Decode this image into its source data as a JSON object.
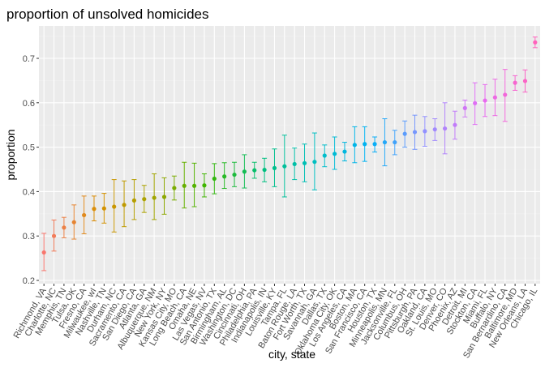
{
  "chart_data": {
    "type": "scatter",
    "title": "proportion of unsolved homicides",
    "xlabel": "city, state",
    "ylabel": "proportion",
    "ylim": [
      0.2,
      0.75
    ],
    "yticks": [
      0.2,
      0.3,
      0.4,
      0.5,
      0.6,
      0.7
    ],
    "grid": true,
    "legend": "none",
    "categories": [
      "Richmond, VA",
      "Charlotte, NC",
      "Memphis, TN",
      "Tulsa, OK",
      "Fresno, CA",
      "Milwaukee, wI",
      "Nashville, TN",
      "Durham, NC",
      "Sacramento, CA",
      "San Diego, CA",
      "Atlanta, GA",
      "Albuquerque, NM",
      "New York, NY",
      "Kansas City, MO",
      "Long Beach, CA",
      "Omaha, NE",
      "Las Vegas, NV",
      "San Antonio, TX",
      "Birmingham, AL",
      "Washington, DC",
      "Cincinnati, OH",
      "Philadelphia, PA",
      "Indianapolis, IN",
      "Louisville, KY",
      "Tampa, FL",
      "Baton Rouge, LA",
      "Fort Worth, TX",
      "Savannah, GA",
      "Dallas, TX",
      "Oklahoma City, OK",
      "Los Angeles, CA",
      "Boston, MA",
      "San Francisco, CA",
      "Houston, TX",
      "Minneapolis, MN",
      "Jacksonville, FL",
      "Columbus, OH",
      "Pittsburgh, PA",
      "Oakland, CA",
      "St. Louis, MO",
      "Denver, CO",
      "Phoenix, AZ",
      "Detroit, MI",
      "Stockton, CA",
      "Miami, FL",
      "Buffalo, NY",
      "San Bernardino, CA",
      "Baltimore, MD",
      "New Orleans, LA",
      "Chicago, IL"
    ],
    "series": [
      {
        "estimate": [
          0.263,
          0.3,
          0.319,
          0.331,
          0.347,
          0.361,
          0.362,
          0.366,
          0.37,
          0.38,
          0.383,
          0.386,
          0.388,
          0.408,
          0.413,
          0.413,
          0.414,
          0.429,
          0.434,
          0.438,
          0.445,
          0.448,
          0.449,
          0.453,
          0.457,
          0.462,
          0.464,
          0.467,
          0.481,
          0.485,
          0.49,
          0.505,
          0.507,
          0.507,
          0.511,
          0.511,
          0.53,
          0.534,
          0.536,
          0.54,
          0.542,
          0.55,
          0.588,
          0.599,
          0.605,
          0.612,
          0.618,
          0.645,
          0.649,
          0.736
        ],
        "low": [
          0.222,
          0.266,
          0.296,
          0.293,
          0.305,
          0.334,
          0.329,
          0.309,
          0.321,
          0.337,
          0.353,
          0.337,
          0.349,
          0.381,
          0.363,
          0.366,
          0.388,
          0.395,
          0.407,
          0.411,
          0.408,
          0.43,
          0.422,
          0.411,
          0.388,
          0.427,
          0.422,
          0.404,
          0.456,
          0.45,
          0.469,
          0.465,
          0.468,
          0.489,
          0.458,
          0.483,
          0.5,
          0.495,
          0.502,
          0.515,
          0.485,
          0.518,
          0.568,
          0.551,
          0.569,
          0.571,
          0.558,
          0.628,
          0.624,
          0.724
        ],
        "high": [
          0.306,
          0.336,
          0.342,
          0.37,
          0.39,
          0.39,
          0.396,
          0.427,
          0.424,
          0.427,
          0.414,
          0.44,
          0.431,
          0.435,
          0.466,
          0.464,
          0.44,
          0.463,
          0.465,
          0.466,
          0.483,
          0.466,
          0.475,
          0.496,
          0.527,
          0.498,
          0.507,
          0.532,
          0.505,
          0.523,
          0.511,
          0.546,
          0.546,
          0.523,
          0.564,
          0.538,
          0.559,
          0.572,
          0.569,
          0.564,
          0.6,
          0.581,
          0.606,
          0.645,
          0.641,
          0.653,
          0.675,
          0.661,
          0.674,
          0.748
        ]
      }
    ],
    "colors": {
      "panel": "#ebebeb",
      "grid_major": "#ffffff",
      "grid_minor": "#f2f2f2",
      "axis_text": "#4d4d4d",
      "tick": "#333333",
      "gradient": [
        "#F8766D",
        "#D89000",
        "#A3A500",
        "#39B600",
        "#00BF7D",
        "#00BFC4",
        "#00B0F6",
        "#9590FF",
        "#E76BF3",
        "#FF62BC"
      ]
    }
  }
}
